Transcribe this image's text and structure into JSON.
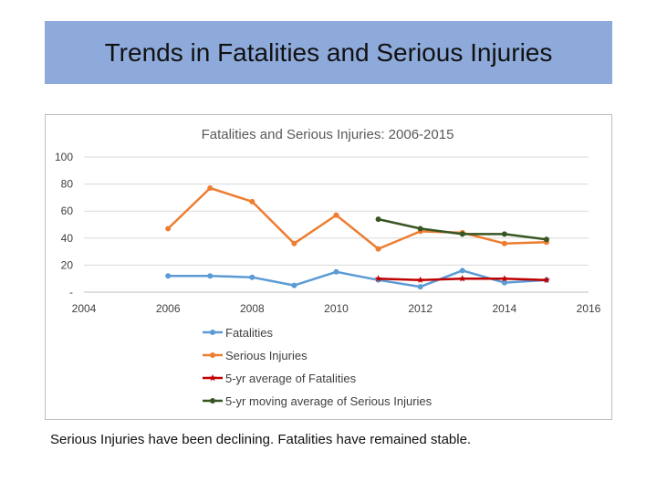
{
  "slide": {
    "title": "Trends in Fatalities and Serious Injuries",
    "caption": "Serious Injuries have been declining. Fatalities have remained stable."
  },
  "chart_data": {
    "type": "line",
    "title": "Fatalities and Serious Injuries: 2006-2015",
    "xlabel": "",
    "ylabel": "",
    "xlim": [
      2004,
      2016
    ],
    "ylim": [
      0,
      100
    ],
    "x_ticks": [
      2004,
      2006,
      2008,
      2010,
      2012,
      2014,
      2016
    ],
    "y_ticks": [
      0,
      20,
      40,
      60,
      80,
      100
    ],
    "y_tick_labels": [
      "-",
      "20",
      "40",
      "60",
      "80",
      "100"
    ],
    "grid": true,
    "legend_position": "bottom",
    "series": [
      {
        "name": "Fatalities",
        "color": "#5b9bd5",
        "marker": "circle",
        "x": [
          2006,
          2007,
          2008,
          2009,
          2010,
          2011,
          2012,
          2013,
          2014,
          2015
        ],
        "values": [
          12,
          12,
          11,
          5,
          15,
          9,
          4,
          16,
          7,
          9
        ]
      },
      {
        "name": "Serious Injuries",
        "color": "#ed7d31",
        "marker": "circle",
        "x": [
          2006,
          2007,
          2008,
          2009,
          2010,
          2011,
          2012,
          2013,
          2014,
          2015
        ],
        "values": [
          47,
          77,
          67,
          36,
          57,
          32,
          45,
          44,
          36,
          37
        ]
      },
      {
        "name": "5-yr average of Fatalities",
        "color": "#c00000",
        "marker": "star",
        "x": [
          2011,
          2012,
          2013,
          2014,
          2015
        ],
        "values": [
          10,
          9,
          10,
          10,
          9
        ]
      },
      {
        "name": "5-yr moving average of Serious Injuries",
        "color": "#375623",
        "marker": "circle",
        "x": [
          2011,
          2012,
          2013,
          2014,
          2015
        ],
        "values": [
          54,
          47,
          43,
          43,
          39
        ]
      }
    ]
  }
}
